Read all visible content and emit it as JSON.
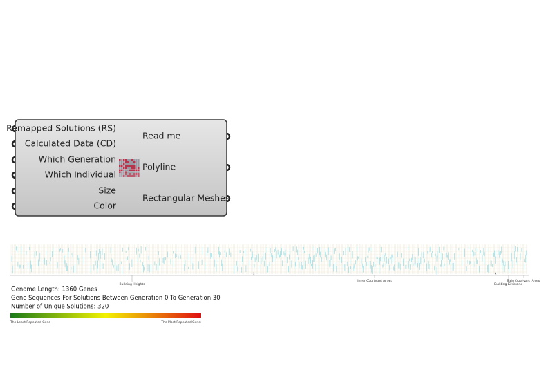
{
  "component": {
    "inputs": [
      "Remapped Solutions (RS)",
      "Calculated Data (CD)",
      "Which Generation",
      "Which Individual",
      "Size",
      "Color"
    ],
    "outputs": [
      "Read me",
      "Polyline",
      "Rectangular Meshes"
    ]
  },
  "strip": {
    "section_labels": [
      "Building Heights",
      "3",
      "Inner Courtyard Areas",
      "5",
      "Building Divisions",
      "Main Courtyard Areas"
    ]
  },
  "info": {
    "lines": [
      "Genome Length: 1360 Genes",
      "Gene Sequences For Solutions Between Generation 0 To Generation 30",
      "Number of Unique Solutions: 320"
    ]
  },
  "legend": {
    "min_label": "The Least Repeated Gene",
    "max_label": "The Most Repeated Gene"
  }
}
